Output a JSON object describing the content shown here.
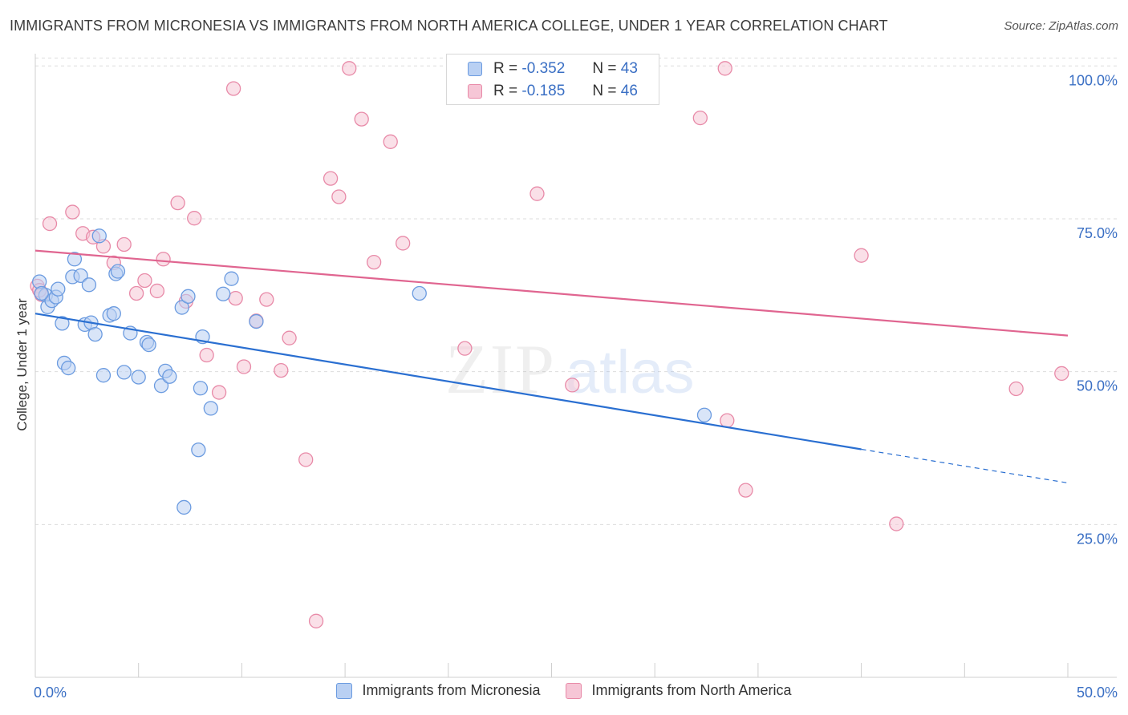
{
  "title": "IMMIGRANTS FROM MICRONESIA VS IMMIGRANTS FROM NORTH AMERICA COLLEGE, UNDER 1 YEAR CORRELATION CHART",
  "source": "Source: ZipAtlas.com",
  "colors": {
    "blue": "#6b9be0",
    "blue_fill": "#b9d0f3",
    "blue_line": "#2a6fd1",
    "pink": "#e88aa8",
    "pink_fill": "#f6c6d6",
    "pink_line": "#e06590",
    "tick_label": "#3a6fc4",
    "grid": "#dddddd"
  },
  "legend": {
    "r_label": "R =",
    "n_label": "N =",
    "rows": [
      {
        "r": "-0.352",
        "n": "43"
      },
      {
        "r": "-0.185",
        "n": "46"
      }
    ]
  },
  "chart_data": {
    "type": "scatter",
    "title": "IMMIGRANTS FROM MICRONESIA VS IMMIGRANTS FROM NORTH AMERICA COLLEGE, UNDER 1 YEAR CORRELATION CHART",
    "xlabel": "",
    "ylabel": "College, Under 1 year",
    "xlim": [
      0,
      50
    ],
    "ylim": [
      0,
      102
    ],
    "x_tick_labels": [
      "0.0%",
      "50.0%"
    ],
    "y_ticks": [
      25,
      50,
      75,
      100
    ],
    "y_tick_labels": [
      "25.0%",
      "50.0%",
      "75.0%",
      "100.0%"
    ],
    "grid": "horizontal dashed",
    "legend_position": "top-center",
    "watermark": "ZIPatlas",
    "series": [
      {
        "name": "Immigrants from Micronesia",
        "color": "#6b9be0",
        "points": [
          [
            0.2,
            64.7
          ],
          [
            0.5,
            62.5
          ],
          [
            0.6,
            60.6
          ],
          [
            0.8,
            61.6
          ],
          [
            1.0,
            62.2
          ],
          [
            1.1,
            63.5
          ],
          [
            1.3,
            57.9
          ],
          [
            1.4,
            51.4
          ],
          [
            1.6,
            50.6
          ],
          [
            1.8,
            65.5
          ],
          [
            1.9,
            68.4
          ],
          [
            2.2,
            65.7
          ],
          [
            2.4,
            57.7
          ],
          [
            2.6,
            64.2
          ],
          [
            2.7,
            58.0
          ],
          [
            2.9,
            56.1
          ],
          [
            3.1,
            72.2
          ],
          [
            3.3,
            49.4
          ],
          [
            3.6,
            59.2
          ],
          [
            3.8,
            59.5
          ],
          [
            3.9,
            66.0
          ],
          [
            4.0,
            66.4
          ],
          [
            4.3,
            49.9
          ],
          [
            4.6,
            56.3
          ],
          [
            5.0,
            49.1
          ],
          [
            5.4,
            54.8
          ],
          [
            5.5,
            54.4
          ],
          [
            6.1,
            47.7
          ],
          [
            6.3,
            50.1
          ],
          [
            6.5,
            49.2
          ],
          [
            7.1,
            60.5
          ],
          [
            7.2,
            27.8
          ],
          [
            7.4,
            62.3
          ],
          [
            7.9,
            37.2
          ],
          [
            8.0,
            47.3
          ],
          [
            8.1,
            55.7
          ],
          [
            8.5,
            44.0
          ],
          [
            9.1,
            62.7
          ],
          [
            9.5,
            65.2
          ],
          [
            10.7,
            58.2
          ],
          [
            18.6,
            62.8
          ],
          [
            32.4,
            42.9
          ],
          [
            0.3,
            62.8
          ]
        ],
        "trend": {
          "x0": 0,
          "y0": 59.5,
          "x1": 40,
          "y1": 37.3,
          "dashed_to_x": 50,
          "dashed_to_y": 31.8
        }
      },
      {
        "name": "Immigrants from North America",
        "color": "#e88aa8",
        "points": [
          [
            0.1,
            64.0
          ],
          [
            0.3,
            62.6
          ],
          [
            0.7,
            74.2
          ],
          [
            1.8,
            76.1
          ],
          [
            2.3,
            72.6
          ],
          [
            2.8,
            72.0
          ],
          [
            3.3,
            70.5
          ],
          [
            3.8,
            67.8
          ],
          [
            4.3,
            70.8
          ],
          [
            4.9,
            62.8
          ],
          [
            5.3,
            64.9
          ],
          [
            5.9,
            63.2
          ],
          [
            6.2,
            68.4
          ],
          [
            6.9,
            77.6
          ],
          [
            7.3,
            61.5
          ],
          [
            7.7,
            75.1
          ],
          [
            8.3,
            52.7
          ],
          [
            8.9,
            46.6
          ],
          [
            9.6,
            96.3
          ],
          [
            9.7,
            62.0
          ],
          [
            10.1,
            50.8
          ],
          [
            10.7,
            58.3
          ],
          [
            11.2,
            61.8
          ],
          [
            11.9,
            50.2
          ],
          [
            12.3,
            55.5
          ],
          [
            13.1,
            35.6
          ],
          [
            13.6,
            9.2
          ],
          [
            14.3,
            81.6
          ],
          [
            14.7,
            78.6
          ],
          [
            15.2,
            99.6
          ],
          [
            15.8,
            91.3
          ],
          [
            16.4,
            67.9
          ],
          [
            17.2,
            87.6
          ],
          [
            17.8,
            71.0
          ],
          [
            20.8,
            53.8
          ],
          [
            24.3,
            79.1
          ],
          [
            26.0,
            47.8
          ],
          [
            32.2,
            91.5
          ],
          [
            33.4,
            99.6
          ],
          [
            33.5,
            42.0
          ],
          [
            34.4,
            30.6
          ],
          [
            40.0,
            69.0
          ],
          [
            41.7,
            25.1
          ],
          [
            47.5,
            47.2
          ],
          [
            49.7,
            49.7
          ],
          [
            0.2,
            63.3
          ]
        ],
        "trend": {
          "x0": 0,
          "y0": 69.8,
          "x1": 50,
          "y1": 55.9
        }
      }
    ]
  }
}
